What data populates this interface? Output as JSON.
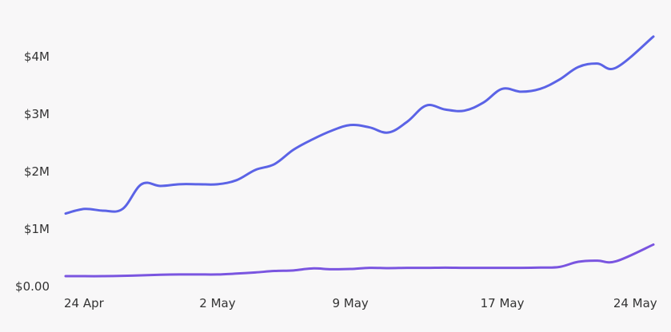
{
  "chart_data": {
    "type": "line",
    "title": "",
    "xlabel": "",
    "ylabel": "",
    "x": [
      "2024-04-24",
      "2024-04-25",
      "2024-04-26",
      "2024-04-27",
      "2024-04-28",
      "2024-04-29",
      "2024-04-30",
      "2024-05-01",
      "2024-05-02",
      "2024-05-03",
      "2024-05-04",
      "2024-05-05",
      "2024-05-06",
      "2024-05-07",
      "2024-05-08",
      "2024-05-09",
      "2024-05-10",
      "2024-05-11",
      "2024-05-12",
      "2024-05-13",
      "2024-05-14",
      "2024-05-15",
      "2024-05-16",
      "2024-05-17",
      "2024-05-18",
      "2024-05-19",
      "2024-05-20",
      "2024-05-21",
      "2024-05-22",
      "2024-05-23",
      "2024-05-24",
      "2024-05-25"
    ],
    "x_ticks": [
      {
        "date": "2024-04-24",
        "label": "24 Apr"
      },
      {
        "date": "2024-05-02",
        "label": "2 May"
      },
      {
        "date": "2024-05-09",
        "label": "9 May"
      },
      {
        "date": "2024-05-17",
        "label": "17 May"
      },
      {
        "date": "2024-05-24",
        "label": "24 May"
      }
    ],
    "y_ticks": [
      {
        "value": 0,
        "label": "$0.00"
      },
      {
        "value": 1000000,
        "label": "$1M"
      },
      {
        "value": 2000000,
        "label": "$2M"
      },
      {
        "value": 3000000,
        "label": "$3M"
      },
      {
        "value": 4000000,
        "label": "$4M"
      }
    ],
    "ylim": [
      0,
      4400000
    ],
    "grid": false,
    "legend": "none",
    "series": [
      {
        "color": "#5b63e6",
        "values": [
          1270000,
          1350000,
          1320000,
          1350000,
          1780000,
          1750000,
          1780000,
          1780000,
          1780000,
          1850000,
          2030000,
          2130000,
          2380000,
          2560000,
          2710000,
          2810000,
          2770000,
          2680000,
          2870000,
          3150000,
          3080000,
          3060000,
          3200000,
          3440000,
          3390000,
          3440000,
          3600000,
          3820000,
          3880000,
          3810000,
          4350000,
          4350000
        ]
      },
      {
        "color": "#7a55e0",
        "values": [
          180000,
          180000,
          180000,
          185000,
          195000,
          205000,
          210000,
          210000,
          210000,
          225000,
          245000,
          270000,
          280000,
          315000,
          300000,
          305000,
          325000,
          320000,
          325000,
          325000,
          328000,
          325000,
          325000,
          325000,
          325000,
          330000,
          340000,
          430000,
          450000,
          440000,
          730000,
          730000
        ]
      }
    ]
  }
}
